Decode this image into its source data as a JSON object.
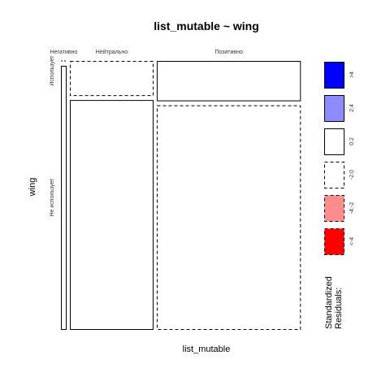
{
  "chart_data": {
    "type": "mosaic",
    "title": "list_mutable ~ wing",
    "xlabel": "list_mutable",
    "ylabel": "wing",
    "x_categories": [
      "Негативно",
      "Нейтрально",
      "Позитивно"
    ],
    "y_categories": [
      "Использует",
      "Не использует"
    ],
    "x_proportions": [
      0.02,
      0.36,
      0.62
    ],
    "cells": [
      {
        "x": "Негативно",
        "y": "Использует",
        "share": 0.0,
        "residual_band": "-2:0"
      },
      {
        "x": "Негативно",
        "y": "Не использует",
        "share": 1.0,
        "residual_band": "0:2"
      },
      {
        "x": "Нейтрально",
        "y": "Использует",
        "share": 0.13,
        "residual_band": "-2:0"
      },
      {
        "x": "Нейтрально",
        "y": "Не использует",
        "share": 0.87,
        "residual_band": "0:2"
      },
      {
        "x": "Позитивно",
        "y": "Использует",
        "share": 0.15,
        "residual_band": "0:2"
      },
      {
        "x": "Позитивно",
        "y": "Не использует",
        "share": 0.85,
        "residual_band": "-2:0"
      }
    ],
    "legend": {
      "title_lines": [
        "Standardized",
        "Residuals:"
      ],
      "placement": "right",
      "entries": [
        {
          "label": ">4",
          "fill": "#0000ff",
          "dashed": false
        },
        {
          "label": "2:4",
          "fill": "#8c8cff",
          "dashed": false
        },
        {
          "label": "0:2",
          "fill": "#ffffff",
          "dashed": false
        },
        {
          "label": "-2:0",
          "fill": "#ffffff",
          "dashed": true
        },
        {
          "label": "-4:-2",
          "fill": "#ff8c8c",
          "dashed": true
        },
        {
          "label": "<-4",
          "fill": "#ff0000",
          "dashed": true
        }
      ]
    }
  }
}
